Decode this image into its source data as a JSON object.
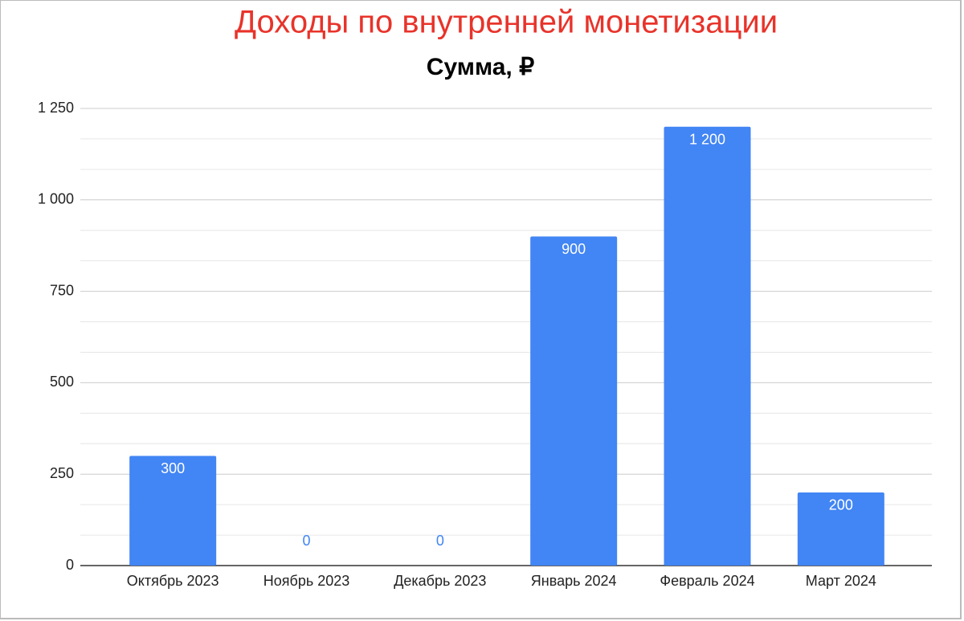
{
  "chart_data": {
    "type": "bar",
    "title": "Доходы по внутренней монетизации",
    "subtitle": "Сумма, ₽",
    "categories": [
      "Октябрь 2023",
      "Ноябрь 2023",
      "Декабрь 2023",
      "Январь 2024",
      "Февраль 2024",
      "Март 2024"
    ],
    "values": [
      300,
      0,
      0,
      900,
      1200,
      200
    ],
    "value_labels": [
      "300",
      "0",
      "0",
      "900",
      "1 200",
      "200"
    ],
    "color": "#4285f4",
    "ylim": [
      0,
      1250
    ],
    "yticks": [
      0,
      250,
      500,
      750,
      {
        "value": 1000,
        "label": "1 000"
      },
      {
        "value": 1250,
        "label": "1 250"
      }
    ],
    "grid": true
  }
}
